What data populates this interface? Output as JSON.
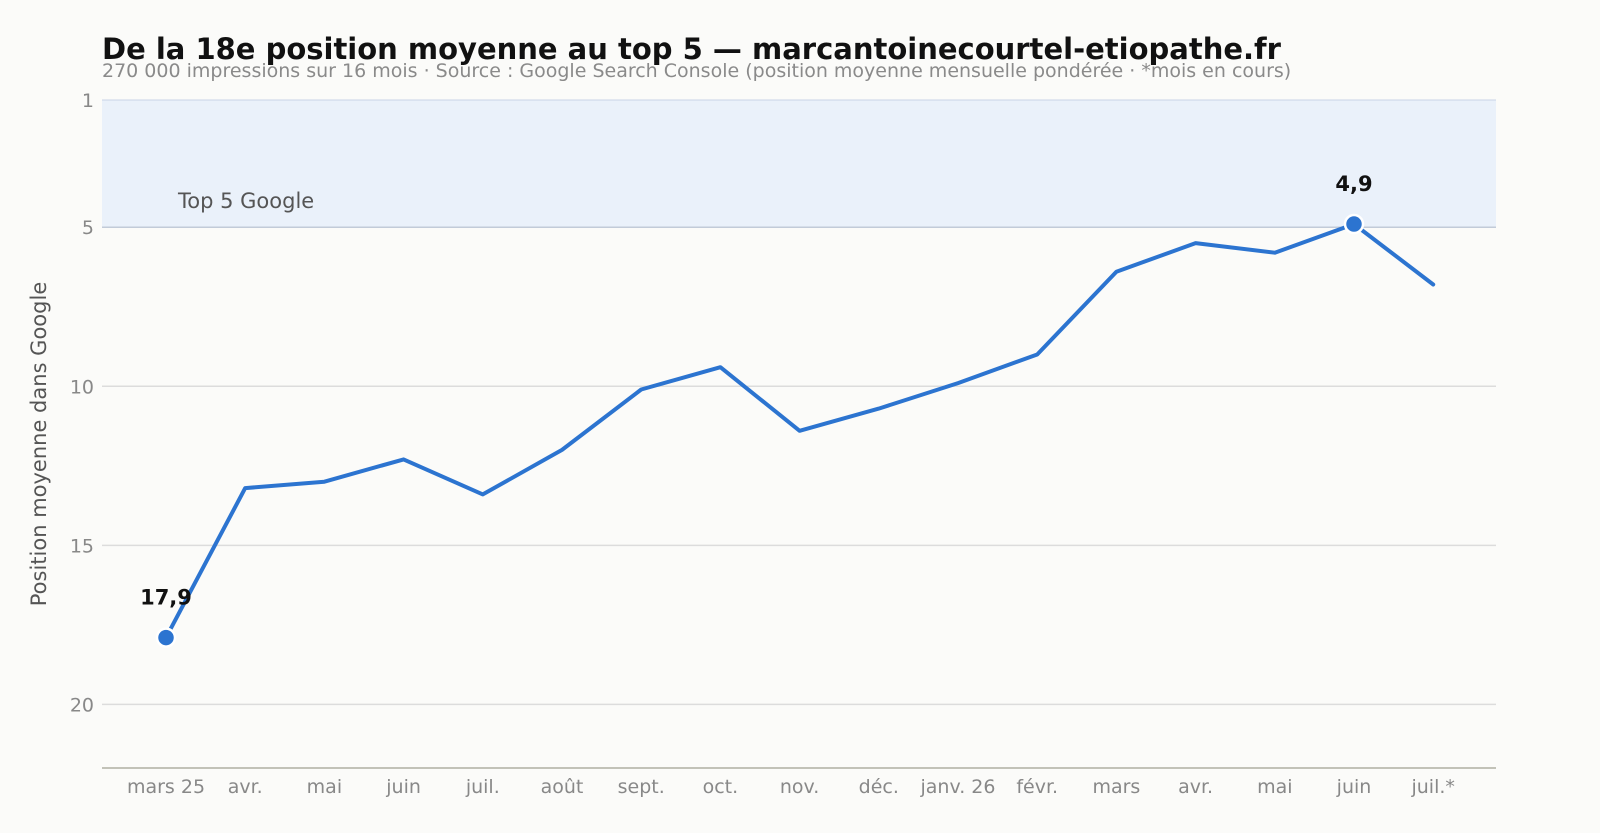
{
  "chart_data": {
    "type": "line",
    "title": "De la 18e position moyenne au top 5 — marcantoinecourtel-etiopathe.fr",
    "subtitle": "270 000 impressions sur 16 mois · Source : Google Search Console (position moyenne mensuelle pondérée · *mois en cours)",
    "ylabel": "Position moyenne dans Google",
    "xlabel": "",
    "y_inverted": true,
    "ylim": [
      22,
      1
    ],
    "yticks": [
      1,
      5,
      10,
      15,
      20
    ],
    "categories": [
      "mars 25",
      "avr.",
      "mai",
      "juin",
      "juil.",
      "août",
      "sept.",
      "oct.",
      "nov.",
      "déc.",
      "janv. 26",
      "févr.",
      "mars",
      "avr.",
      "mai",
      "juin",
      "juil.*"
    ],
    "series": [
      {
        "values": [
          17.9,
          13.2,
          13.0,
          12.3,
          13.4,
          12.0,
          10.1,
          9.4,
          11.4,
          10.7,
          9.9,
          9.0,
          6.4,
          5.5,
          5.8,
          4.9,
          6.8
        ]
      }
    ],
    "highlight_band": {
      "from": 1,
      "to": 5,
      "label": "Top 5 Google",
      "color": "#eaf1fa"
    },
    "annotations": [
      {
        "index": 0,
        "label": "17,9"
      },
      {
        "index": 15,
        "label": "4,9"
      }
    ],
    "grid": "horizontal",
    "line_color": "#2c74d0"
  }
}
